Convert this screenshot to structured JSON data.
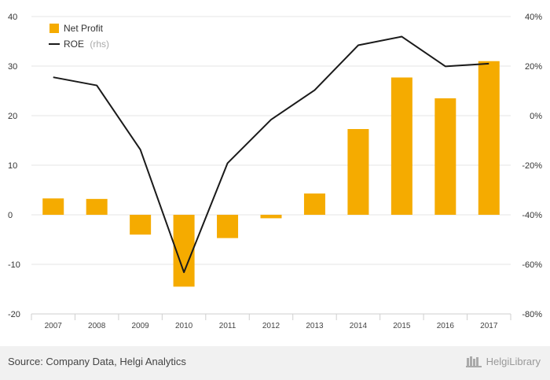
{
  "chart_data": {
    "type": "bar+line",
    "categories": [
      "2007",
      "2008",
      "2009",
      "2010",
      "2011",
      "2012",
      "2013",
      "2014",
      "2015",
      "2016",
      "2017"
    ],
    "series": [
      {
        "name": "Net Profit",
        "type": "bar",
        "axis": "left",
        "color": "#f5ab00",
        "values": [
          3.3,
          3.2,
          -4.0,
          -14.5,
          -4.7,
          -0.7,
          4.3,
          17.3,
          27.7,
          23.5,
          31.0
        ]
      },
      {
        "name": "ROE",
        "name_suffix": "(rhs)",
        "type": "line",
        "axis": "right",
        "color": "#1a1a1a",
        "values": [
          15.5,
          12.2,
          -13.7,
          -63.2,
          -19.2,
          -1.6,
          10.3,
          28.4,
          31.9,
          19.9,
          21.0
        ]
      }
    ],
    "y_left": {
      "ticks": [
        40,
        30,
        20,
        10,
        0,
        -10,
        -20
      ],
      "ylim": [
        -20,
        40
      ]
    },
    "y_right": {
      "ticks": [
        "40%",
        "20%",
        "0%",
        "-20%",
        "-40%",
        "-60%",
        "-80%"
      ],
      "ylim": [
        -80,
        40
      ],
      "unit": "%"
    },
    "grid": true,
    "legend_position": "top-left"
  },
  "footer": {
    "source": "Source: Company Data, Helgi Analytics",
    "brand": "HelgiLibrary"
  }
}
